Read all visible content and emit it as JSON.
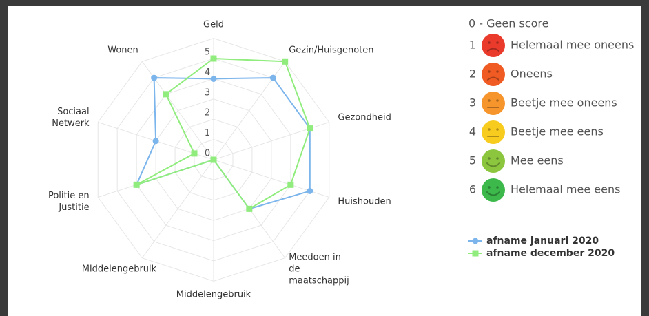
{
  "chart_data": {
    "type": "radar",
    "categories": [
      "Geld",
      "Gezin/Huisgenoten",
      "Gezondheid",
      "Huishouden",
      "Meedoen in de maatschappij",
      "Middelengebruik",
      "Middelengebruik",
      "Politie en Justitie",
      "Sociaal Netwerk",
      "Wonen"
    ],
    "series": [
      {
        "name": "afname januari 2020",
        "color": "#7cb5ec",
        "marker": "circle",
        "values": [
          4,
          5,
          5,
          5,
          3,
          0,
          0,
          4,
          3,
          5
        ]
      },
      {
        "name": "afname december 2020",
        "color": "#90ed7d",
        "marker": "square",
        "values": [
          5,
          6,
          5,
          4,
          3,
          0,
          0,
          4,
          1,
          4
        ]
      }
    ],
    "ylim": [
      0,
      6
    ],
    "yticks": [
      0,
      1,
      2,
      3,
      4,
      5
    ],
    "grid": true
  },
  "score_legend": {
    "none": "0 - Geen score",
    "items": [
      {
        "number": 1,
        "label": "Helemaal mee oneens",
        "color": "#ea3a2c"
      },
      {
        "number": 2,
        "label": "Oneens",
        "color": "#f05b24"
      },
      {
        "number": 3,
        "label": "Beetje mee oneens",
        "color": "#f5952b"
      },
      {
        "number": 4,
        "label": "Beetje mee eens",
        "color": "#f8cb1f"
      },
      {
        "number": 5,
        "label": "Mee eens",
        "color": "#8cc63f"
      },
      {
        "number": 6,
        "label": "Helemaal mee eens",
        "color": "#3db94b"
      }
    ]
  }
}
